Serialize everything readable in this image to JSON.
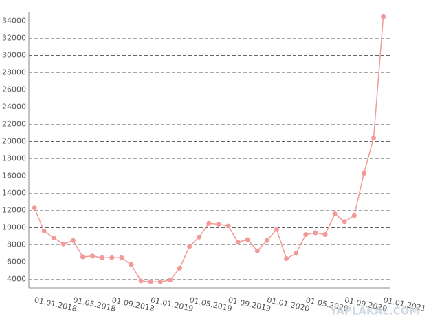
{
  "chart_data": {
    "type": "line",
    "categories": [
      "01.01.2018",
      null,
      null,
      null,
      "01.05.2018",
      null,
      null,
      null,
      "01.09.2018",
      null,
      null,
      null,
      "01.01.2019",
      null,
      null,
      null,
      "01.05.2019",
      null,
      null,
      null,
      "01.09.2019",
      null,
      null,
      null,
      "01.01.2020",
      null,
      null,
      null,
      "01.05.2020",
      null,
      null,
      null,
      "01.09.2020",
      null,
      null,
      null,
      "01.01.2021"
    ],
    "values": [
      12300,
      9600,
      8800,
      8100,
      8500,
      6600,
      6700,
      6500,
      6500,
      6500,
      5700,
      3800,
      3700,
      3700,
      3900,
      5300,
      7800,
      8900,
      10500,
      10400,
      10200,
      8300,
      8600,
      7300,
      8500,
      9800,
      6400,
      7000,
      9200,
      9400,
      9200,
      11600,
      10700,
      11400,
      16300,
      20400,
      34500
    ],
    "color": "#f29a98",
    "ylim": [
      3000,
      35000
    ],
    "yticks": [
      4000,
      6000,
      8000,
      10000,
      12000,
      14000,
      16000,
      18000,
      20000,
      22000,
      24000,
      26000,
      28000,
      30000,
      32000,
      34000
    ],
    "grid": true,
    "watermark": "YAPLAKAL.COM"
  }
}
